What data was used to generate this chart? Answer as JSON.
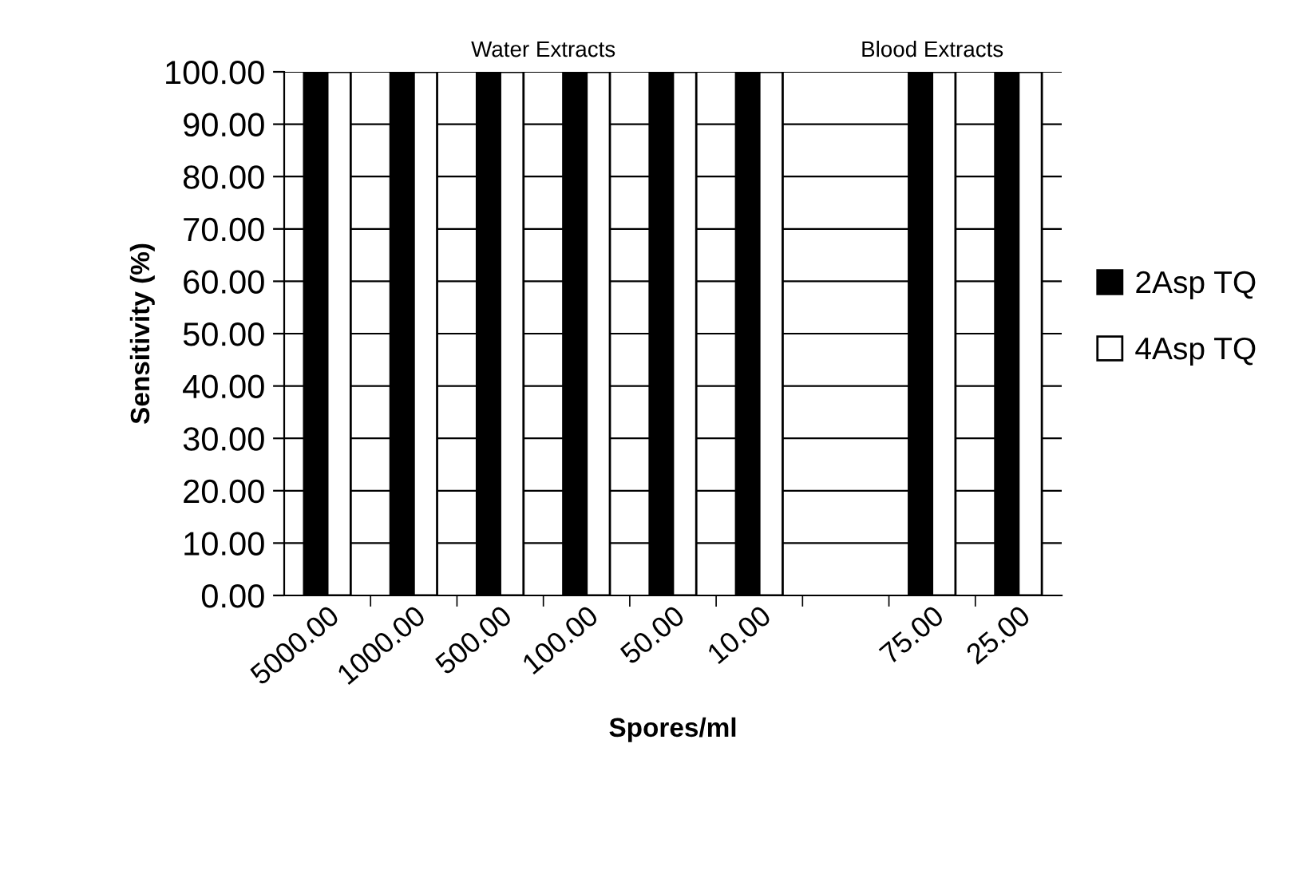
{
  "chart_data": {
    "type": "bar",
    "categories": [
      "5000.00",
      "1000.00",
      "500.00",
      "100.00",
      "50.00",
      "10.00",
      null,
      "75.00",
      "25.00"
    ],
    "series": [
      {
        "name": "2Asp TQ",
        "color": "#000000",
        "values": [
          100,
          100,
          100,
          100,
          100,
          100,
          null,
          100,
          100
        ]
      },
      {
        "name": "4Asp TQ",
        "color": "#ffffff",
        "values": [
          100,
          100,
          100,
          100,
          100,
          100,
          null,
          100,
          100
        ]
      }
    ],
    "xlabel": "Spores/ml",
    "ylabel": "Sensitivity (%)",
    "annotations": [
      "Water Extracts",
      "Blood Extracts"
    ],
    "ylim": [
      0,
      100
    ],
    "yticks": [
      {
        "value": 0,
        "label": "0.00"
      },
      {
        "value": 10,
        "label": "10.00"
      },
      {
        "value": 20,
        "label": "20.00"
      },
      {
        "value": 30,
        "label": "30.00"
      },
      {
        "value": 40,
        "label": "40.00"
      },
      {
        "value": 50,
        "label": "50.00"
      },
      {
        "value": 60,
        "label": "60.00"
      },
      {
        "value": 70,
        "label": "70.00"
      },
      {
        "value": 80,
        "label": "80.00"
      },
      {
        "value": 90,
        "label": "90.00"
      },
      {
        "value": 100,
        "label": "100.00"
      }
    ],
    "grid": "y",
    "legend": "right"
  }
}
